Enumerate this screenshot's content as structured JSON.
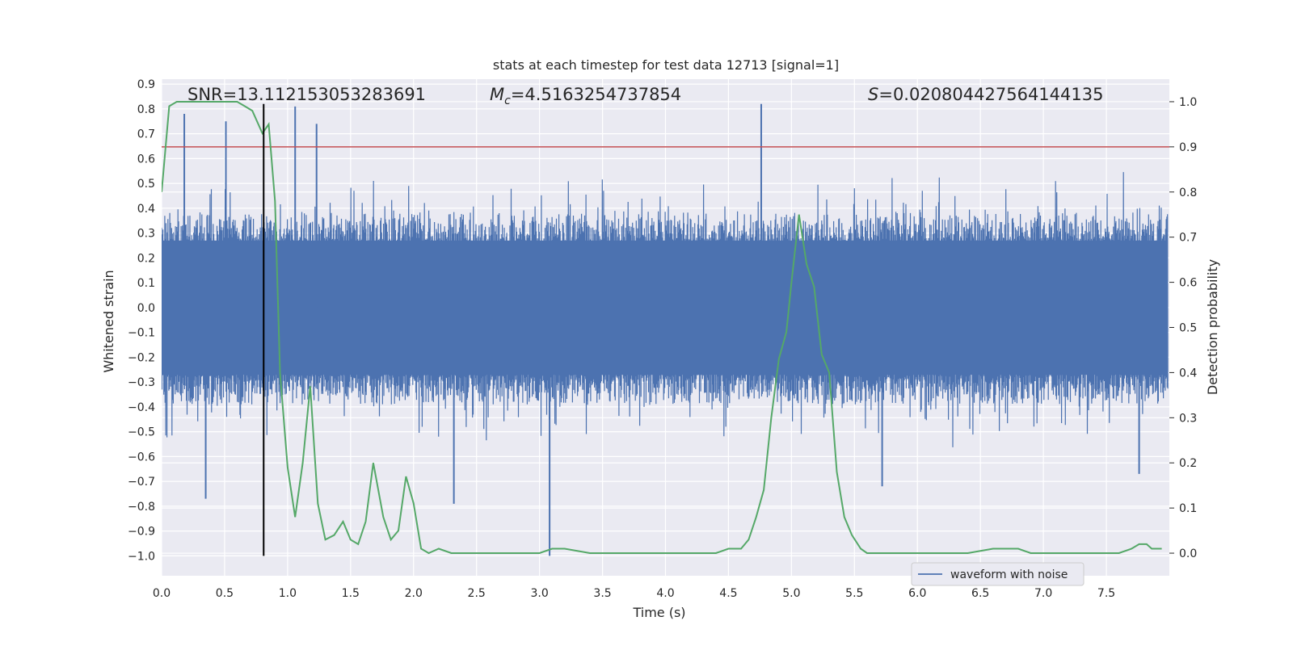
{
  "chart_data": {
    "type": "line",
    "title": "stats at each timestep for test data 12713 [signal=1]",
    "xlabel": "Time (s)",
    "ylabel_left": "Whitened strain",
    "ylabel_right": "Detection probability",
    "xlim": [
      0.0,
      8.0
    ],
    "ylim_left": [
      -1.08,
      0.92
    ],
    "ylim_right": [
      -0.05,
      1.05
    ],
    "x_ticks": [
      "0.0",
      "0.5",
      "1.0",
      "1.5",
      "2.0",
      "2.5",
      "3.0",
      "3.5",
      "4.0",
      "4.5",
      "5.0",
      "5.5",
      "6.0",
      "6.5",
      "7.0",
      "7.5"
    ],
    "y_ticks_left": [
      "0.9",
      "0.8",
      "0.7",
      "0.6",
      "0.5",
      "0.4",
      "0.3",
      "0.2",
      "0.1",
      "0.0",
      "−0.1",
      "−0.2",
      "−0.3",
      "−0.4",
      "−0.5",
      "−0.6",
      "−0.7",
      "−0.8",
      "−0.9",
      "−1.0"
    ],
    "y_ticks_right": [
      "1.0",
      "0.9",
      "0.8",
      "0.7",
      "0.6",
      "0.5",
      "0.4",
      "0.3",
      "0.2",
      "0.1",
      "0.0"
    ],
    "grid": true,
    "legend_position": "lower-right",
    "annotations": {
      "snr": "SNR=13.112153053283691",
      "mc_symbol": "M",
      "mc_sub": "c",
      "mc_value": "=4.5163254737854",
      "s_symbol": "S",
      "s_value": "=0.020804427564144135"
    },
    "threshold_line": {
      "axis": "right",
      "y": 0.9,
      "color": "#c44e52"
    },
    "marker_line": {
      "x": 0.81,
      "y_range": [
        -1.0,
        0.82
      ],
      "color": "#000000"
    },
    "series": [
      {
        "name": "waveform with noise",
        "axis": "left",
        "color": "#4c72b0",
        "note": "noisy whitened strain, dense band approx +/-0.27 with peaks to about +/-0.8",
        "peaks": [
          {
            "x": 0.18,
            "y": 0.78
          },
          {
            "x": 0.35,
            "y": -0.77
          },
          {
            "x": 0.51,
            "y": 0.75
          },
          {
            "x": 1.06,
            "y": 0.81
          },
          {
            "x": 1.23,
            "y": 0.74
          },
          {
            "x": 2.32,
            "y": -0.79
          },
          {
            "x": 3.08,
            "y": -1.0
          },
          {
            "x": 4.76,
            "y": 0.82
          },
          {
            "x": 5.72,
            "y": -0.72
          },
          {
            "x": 7.76,
            "y": -0.67
          }
        ]
      },
      {
        "name": "",
        "axis": "right",
        "color": "#55a868",
        "x": [
          0.0,
          0.06,
          0.12,
          0.18,
          0.3,
          0.45,
          0.6,
          0.66,
          0.72,
          0.8,
          0.85,
          0.9,
          0.94,
          1.0,
          1.06,
          1.12,
          1.18,
          1.24,
          1.3,
          1.37,
          1.44,
          1.5,
          1.56,
          1.62,
          1.68,
          1.76,
          1.82,
          1.88,
          1.94,
          2.0,
          2.06,
          2.12,
          2.2,
          2.3,
          2.5,
          2.8,
          3.0,
          3.1,
          3.2,
          3.4,
          3.6,
          3.8,
          4.0,
          4.2,
          4.4,
          4.5,
          4.6,
          4.66,
          4.72,
          4.78,
          4.84,
          4.9,
          4.96,
          5.0,
          5.06,
          5.12,
          5.18,
          5.24,
          5.3,
          5.36,
          5.42,
          5.48,
          5.55,
          5.6,
          5.8,
          6.0,
          6.4,
          6.6,
          6.8,
          6.9,
          7.2,
          7.4,
          7.6,
          7.7,
          7.76,
          7.82,
          7.86,
          7.94
        ],
        "y": [
          0.8,
          0.99,
          1.0,
          1.0,
          1.0,
          1.0,
          1.0,
          0.99,
          0.98,
          0.93,
          0.95,
          0.78,
          0.4,
          0.19,
          0.08,
          0.2,
          0.37,
          0.11,
          0.03,
          0.04,
          0.07,
          0.03,
          0.02,
          0.07,
          0.2,
          0.08,
          0.03,
          0.05,
          0.17,
          0.11,
          0.01,
          0.0,
          0.01,
          0.0,
          0.0,
          0.0,
          0.0,
          0.01,
          0.01,
          0.0,
          0.0,
          0.0,
          0.0,
          0.0,
          0.0,
          0.01,
          0.01,
          0.03,
          0.08,
          0.14,
          0.3,
          0.43,
          0.49,
          0.6,
          0.75,
          0.64,
          0.59,
          0.44,
          0.4,
          0.18,
          0.08,
          0.04,
          0.01,
          0.0,
          0.0,
          0.0,
          0.0,
          0.01,
          0.01,
          0.0,
          0.0,
          0.0,
          0.0,
          0.01,
          0.02,
          0.02,
          0.01,
          0.01
        ]
      }
    ]
  }
}
